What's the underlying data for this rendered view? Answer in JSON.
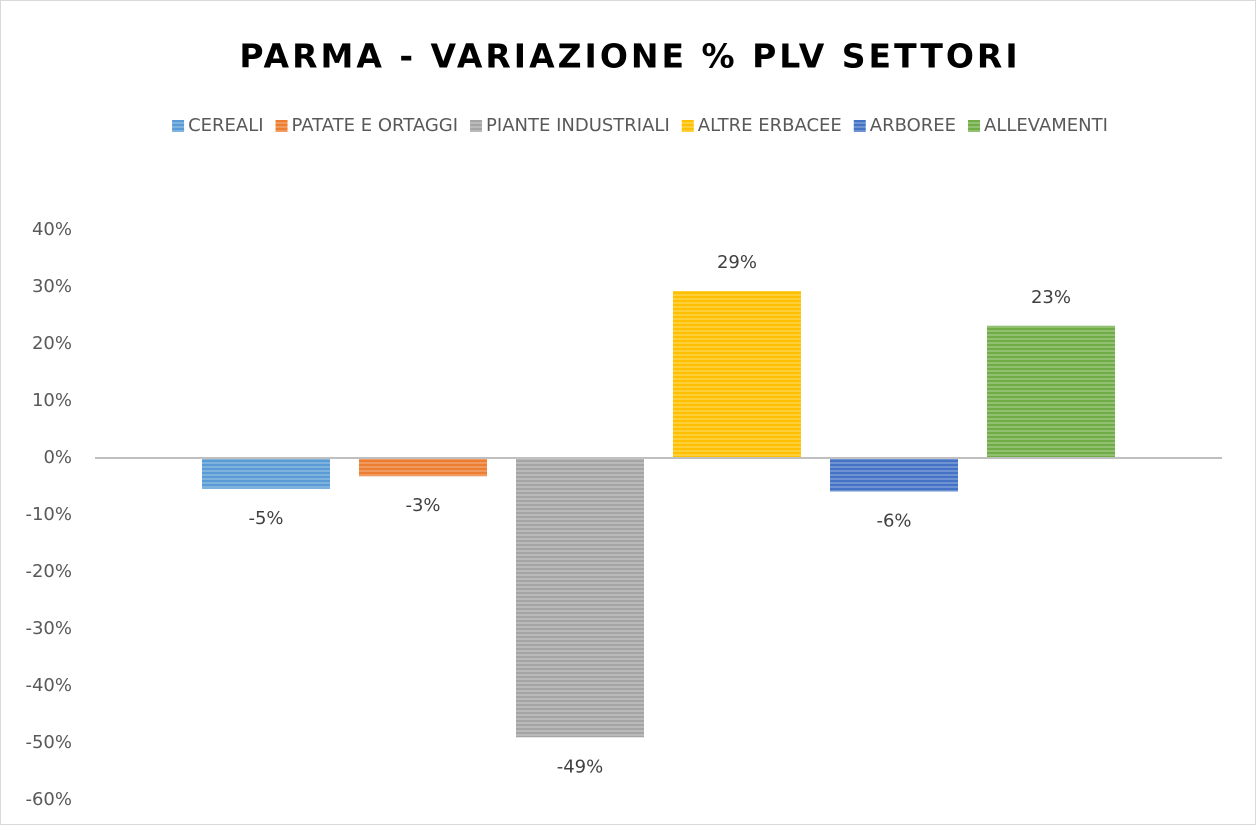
{
  "chart_data": {
    "type": "bar",
    "title": "PARMA - VARIAZIONE % PLV SETTORI",
    "series": [
      {
        "name": "CEREALI",
        "color": "#5b9bd5",
        "values": [
          -5.4
        ],
        "value_labels": [
          "-5%"
        ]
      },
      {
        "name": "PATATE E ORTAGGI",
        "color": "#ed7d31",
        "values": [
          -3.2
        ],
        "value_labels": [
          "-3%"
        ]
      },
      {
        "name": "PIANTE INDUSTRIALI",
        "color": "#a5a5a5",
        "values": [
          -49
        ],
        "value_labels": [
          "-49%"
        ]
      },
      {
        "name": "ALTRE ERBACEE",
        "color": "#ffc000",
        "values": [
          29.3
        ],
        "value_labels": [
          "29%"
        ]
      },
      {
        "name": "ARBOREE",
        "color": "#4472c4",
        "values": [
          -5.9
        ],
        "value_labels": [
          "-6%"
        ]
      },
      {
        "name": "ALLEVAMENTI",
        "color": "#70ad47",
        "values": [
          23.2
        ],
        "value_labels": [
          "23%"
        ]
      }
    ],
    "ylim": [
      -60,
      40
    ],
    "yticks": [
      {
        "value": -60,
        "label": "-60%"
      },
      {
        "value": -50,
        "label": "-50%"
      },
      {
        "value": -40,
        "label": "-40%"
      },
      {
        "value": -30,
        "label": "-30%"
      },
      {
        "value": -20,
        "label": "-20%"
      },
      {
        "value": -10,
        "label": "-10%"
      },
      {
        "value": 0,
        "label": "0%"
      },
      {
        "value": 10,
        "label": "10%"
      },
      {
        "value": 20,
        "label": "20%"
      },
      {
        "value": 30,
        "label": "30%"
      },
      {
        "value": 40,
        "label": "40%"
      }
    ],
    "grid": false,
    "legend": "top"
  }
}
